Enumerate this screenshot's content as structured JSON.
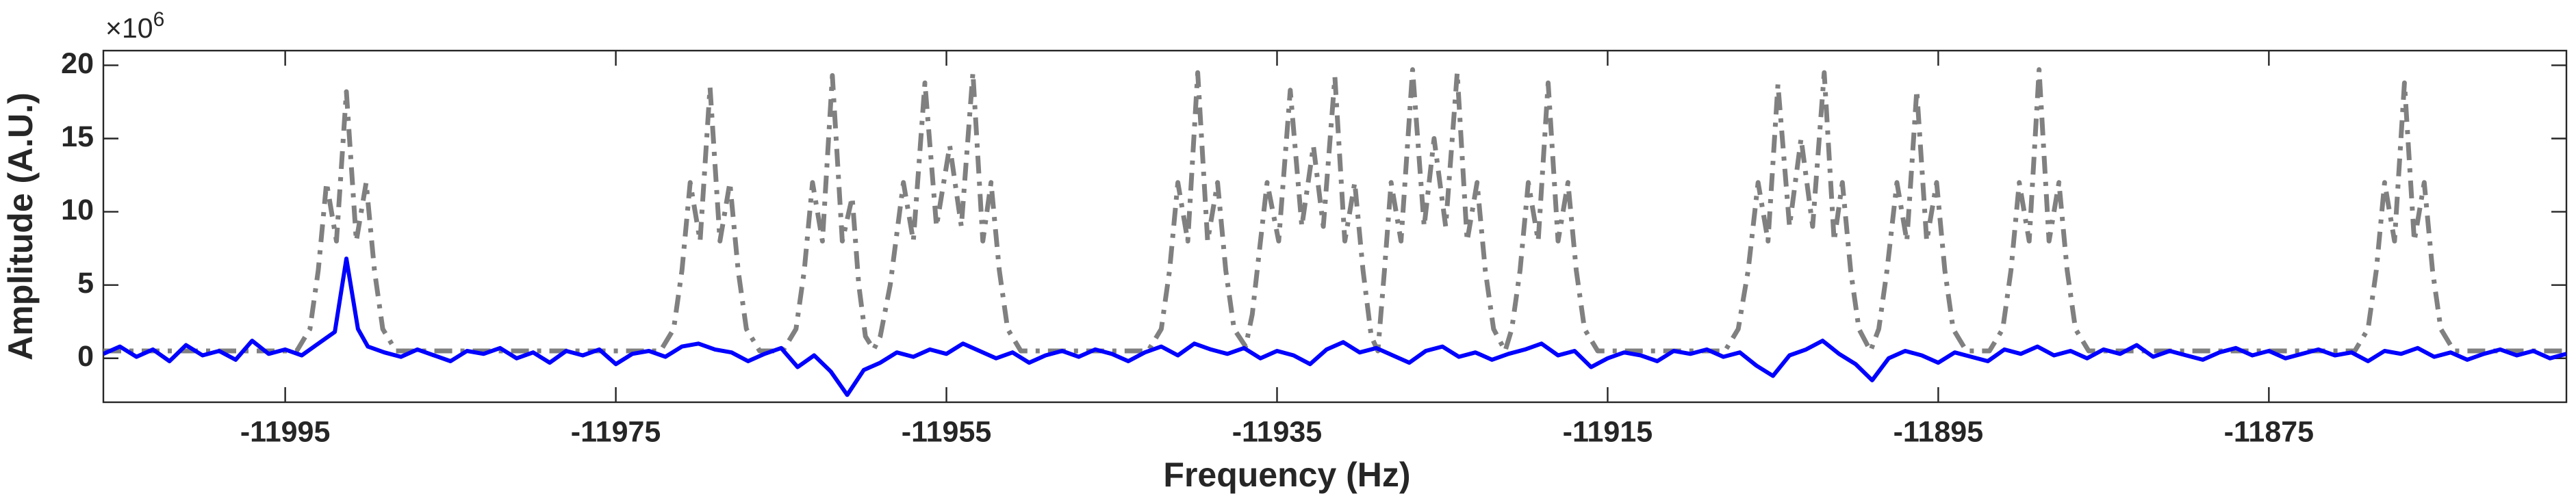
{
  "chart_data": {
    "type": "line",
    "xlabel": "Frequency (Hz)",
    "ylabel": "Amplitude (A.U.)",
    "y_multiplier": {
      "text": "×10",
      "power": 6
    },
    "xlim": [
      -12006,
      -11857
    ],
    "xticks": [
      -11995,
      -11975,
      -11955,
      -11935,
      -11915,
      -11895,
      -11875
    ],
    "ylim": [
      -3,
      21
    ],
    "yticks": [
      0,
      5,
      10,
      15,
      20
    ],
    "grid": false,
    "series": [
      {
        "color": "#808080",
        "style": "dashdot",
        "x": [
          -12006,
          -11994.3,
          -11993.5,
          -11993.0,
          -11992.5,
          -11991.9,
          -11991.3,
          -11990.7,
          -11990.1,
          -11989.6,
          -11989.1,
          -11988.3,
          -11972.3,
          -11971.5,
          -11971.0,
          -11970.5,
          -11969.9,
          -11969.3,
          -11968.7,
          -11968.1,
          -11967.6,
          -11967.1,
          -11966.3,
          -11964.9,
          -11964.1,
          -11963.6,
          -11963.1,
          -11962.5,
          -11961.9,
          -11961.3,
          -11960.7,
          -11960.3,
          -11959.9,
          -11959.4,
          -11959.0,
          -11958.4,
          -11957.6,
          -11957.0,
          -11956.3,
          -11955.6,
          -11954.8,
          -11954.1,
          -11953.4,
          -11952.8,
          -11952.3,
          -11951.8,
          -11951.3,
          -11950.5,
          -11945,
          -11942.8,
          -11942.0,
          -11941.5,
          -11941.0,
          -11940.4,
          -11939.8,
          -11939.2,
          -11938.6,
          -11938.1,
          -11937.6,
          -11936.9,
          -11936.5,
          -11936.1,
          -11935.6,
          -11934.9,
          -11934.2,
          -11933.5,
          -11932.8,
          -11932.2,
          -11931.5,
          -11930.9,
          -11930.3,
          -11929.8,
          -11929.3,
          -11928.9,
          -11928.5,
          -11928.1,
          -11927.5,
          -11926.8,
          -11926.1,
          -11925.5,
          -11924.8,
          -11924.1,
          -11923.5,
          -11922.9,
          -11922.4,
          -11921.9,
          -11921.2,
          -11920.8,
          -11920.3,
          -11919.8,
          -11919.2,
          -11918.6,
          -11918.0,
          -11917.4,
          -11916.9,
          -11916.4,
          -11915.6,
          -11910,
          -11907.9,
          -11907.1,
          -11906.5,
          -11905.9,
          -11905.3,
          -11904.7,
          -11904.0,
          -11903.3,
          -11902.6,
          -11901.9,
          -11901.3,
          -11900.8,
          -11900.3,
          -11899.8,
          -11899.1,
          -11898.6,
          -11898.1,
          -11897.5,
          -11896.9,
          -11896.3,
          -11895.7,
          -11895.1,
          -11894.6,
          -11894.1,
          -11893.3,
          -11891.9,
          -11891.1,
          -11890.6,
          -11890.1,
          -11889.5,
          -11888.9,
          -11888.3,
          -11887.7,
          -11887.2,
          -11886.7,
          -11885.9,
          -11875,
          -11869.8,
          -11869.0,
          -11868.5,
          -11868.0,
          -11867.4,
          -11866.8,
          -11866.2,
          -11865.6,
          -11865.1,
          -11864.6,
          -11863.8,
          -11857
        ],
        "values": [
          0.5,
          0.5,
          2,
          6,
          12,
          8,
          18.2,
          8,
          12,
          6,
          2,
          0.5,
          0.5,
          2,
          6,
          12,
          8,
          18.5,
          8,
          12,
          6,
          2,
          0.5,
          0.5,
          2,
          6,
          12,
          8,
          19.3,
          8,
          11,
          5,
          1.5,
          0.6,
          1.5,
          5,
          12,
          8,
          18.8,
          9,
          14.5,
          9,
          19.5,
          8,
          12,
          6,
          2,
          0.5,
          0.5,
          0.5,
          2,
          6,
          12,
          8,
          19.5,
          8,
          12,
          6,
          2,
          0.8,
          3,
          7,
          12,
          8,
          18.3,
          9,
          14.5,
          9,
          19.2,
          8,
          12,
          6,
          1.5,
          0.5,
          6,
          12,
          8,
          19.7,
          9,
          15,
          9,
          19.5,
          8,
          12,
          6,
          2,
          0.5,
          2,
          6,
          12,
          8,
          18.8,
          8,
          12,
          6,
          2,
          0.5,
          0.5,
          0.5,
          2,
          6,
          12,
          8,
          18.7,
          9,
          15,
          9,
          19.5,
          8,
          12,
          6,
          2,
          0.5,
          2,
          6,
          12,
          8,
          18.3,
          8,
          12,
          6,
          2,
          0.5,
          0.5,
          2,
          6,
          12,
          8,
          19.7,
          8,
          12,
          6,
          2,
          0.5,
          0.5,
          0.5,
          2,
          6,
          12,
          8,
          18.8,
          8,
          12,
          6,
          2,
          0.5,
          0.5
        ]
      },
      {
        "color": "#0000ff",
        "style": "solid",
        "x": [
          -12006,
          -12005,
          -12004,
          -12003,
          -12002,
          -12001,
          -12000,
          -11999,
          -11998,
          -11997,
          -11996,
          -11995,
          -11994,
          -11993,
          -11992,
          -11991.3,
          -11990.6,
          -11990,
          -11989,
          -11988,
          -11987,
          -11986,
          -11985,
          -11984,
          -11983,
          -11982,
          -11981,
          -11980,
          -11979,
          -11978,
          -11977,
          -11976,
          -11975,
          -11974,
          -11973,
          -11972,
          -11971,
          -11970,
          -11969,
          -11968,
          -11967,
          -11966,
          -11965,
          -11964,
          -11963,
          -11962,
          -11961,
          -11960,
          -11959,
          -11958,
          -11957,
          -11956,
          -11955,
          -11954,
          -11953,
          -11952,
          -11951,
          -11950,
          -11949,
          -11948,
          -11947,
          -11946,
          -11945,
          -11944,
          -11943,
          -11942,
          -11941,
          -11940,
          -11939,
          -11938,
          -11937,
          -11936,
          -11935,
          -11934,
          -11933,
          -11932,
          -11931,
          -11930,
          -11929,
          -11928,
          -11927,
          -11926,
          -11925,
          -11924,
          -11923,
          -11922,
          -11921,
          -11920,
          -11919,
          -11918,
          -11917,
          -11916,
          -11915,
          -11914,
          -11913,
          -11912,
          -11911,
          -11910,
          -11909,
          -11908,
          -11907,
          -11906,
          -11905,
          -11904,
          -11903,
          -11902,
          -11901,
          -11900,
          -11899,
          -11898,
          -11897,
          -11896,
          -11895,
          -11894,
          -11893,
          -11892,
          -11891,
          -11890,
          -11889,
          -11888,
          -11887,
          -11886,
          -11885,
          -11884,
          -11883,
          -11882,
          -11881,
          -11880,
          -11879,
          -11878,
          -11877,
          -11876,
          -11875,
          -11874,
          -11873,
          -11872,
          -11871,
          -11870,
          -11869,
          -11868,
          -11867,
          -11866,
          -11865,
          -11864,
          -11863,
          -11862,
          -11861,
          -11860,
          -11859,
          -11858,
          -11857
        ],
        "values": [
          0.3,
          0.8,
          0.1,
          0.6,
          -0.2,
          0.9,
          0.2,
          0.5,
          -0.1,
          1.2,
          0.3,
          0.6,
          0.2,
          1.0,
          1.8,
          6.8,
          2.0,
          0.8,
          0.4,
          0.1,
          0.6,
          0.2,
          -0.2,
          0.5,
          0.3,
          0.7,
          0.0,
          0.4,
          -0.3,
          0.5,
          0.2,
          0.6,
          -0.4,
          0.3,
          0.5,
          0.1,
          0.8,
          1.0,
          0.6,
          0.4,
          -0.2,
          0.3,
          0.7,
          -0.6,
          0.2,
          -0.9,
          -2.5,
          -0.8,
          -0.3,
          0.4,
          0.1,
          0.6,
          0.3,
          1.0,
          0.5,
          0.0,
          0.4,
          -0.3,
          0.2,
          0.5,
          0.1,
          0.6,
          0.3,
          -0.2,
          0.4,
          0.8,
          0.2,
          1.0,
          0.6,
          0.3,
          0.7,
          0.0,
          0.5,
          0.2,
          -0.4,
          0.6,
          1.1,
          0.4,
          0.7,
          0.2,
          -0.3,
          0.5,
          0.8,
          0.1,
          0.4,
          -0.1,
          0.3,
          0.6,
          1.0,
          0.2,
          0.5,
          -0.6,
          0.0,
          0.4,
          0.2,
          -0.2,
          0.5,
          0.3,
          0.6,
          0.1,
          0.4,
          -0.5,
          -1.2,
          0.2,
          0.6,
          1.2,
          0.3,
          -0.4,
          -1.5,
          0.0,
          0.5,
          0.2,
          -0.3,
          0.4,
          0.1,
          -0.2,
          0.6,
          0.3,
          0.8,
          0.2,
          0.5,
          0.0,
          0.6,
          0.3,
          0.9,
          0.1,
          0.5,
          0.2,
          -0.1,
          0.4,
          0.7,
          0.2,
          0.5,
          0.0,
          0.3,
          0.6,
          0.2,
          0.4,
          -0.2,
          0.5,
          0.3,
          0.7,
          0.1,
          0.4,
          -0.1,
          0.3,
          0.6,
          0.2,
          0.5,
          0.0,
          0.3
        ]
      }
    ]
  }
}
